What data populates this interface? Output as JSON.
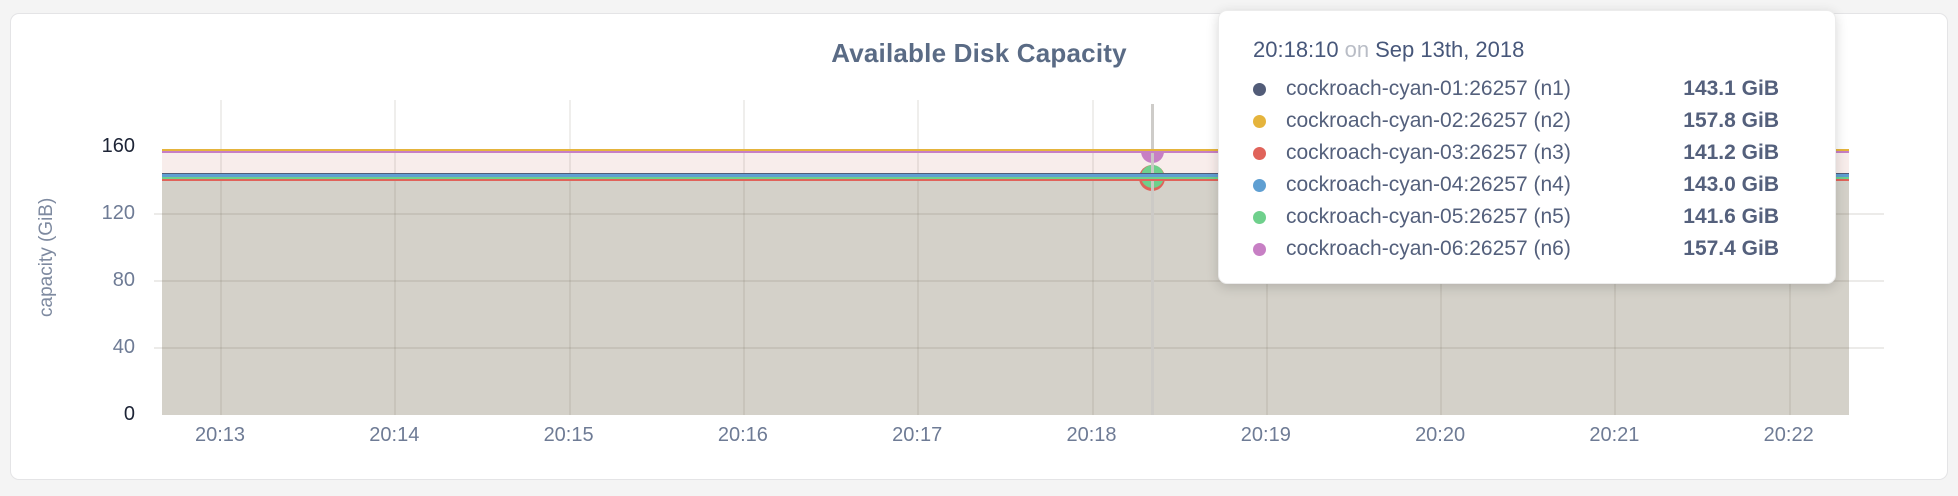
{
  "chart": {
    "title": "Available Disk Capacity",
    "ylabel": "capacity (GiB)"
  },
  "chart_data": {
    "type": "area",
    "title": "Available Disk Capacity",
    "xlabel": "",
    "ylabel": "capacity (GiB)",
    "ylim": [
      0,
      160
    ],
    "y_ticks": [
      0,
      40,
      80,
      120,
      160
    ],
    "x_ticks": [
      "20:13",
      "20:14",
      "20:15",
      "20:16",
      "20:17",
      "20:18",
      "20:19",
      "20:20",
      "20:21",
      "20:22"
    ],
    "grid": true,
    "legend_position": "tooltip",
    "hover_time": "20:18:10",
    "series": [
      {
        "name": "cockroach-cyan-01:26257 (n1)",
        "value_gib": 143.1,
        "color": "#525c78"
      },
      {
        "name": "cockroach-cyan-02:26257 (n2)",
        "value_gib": 157.8,
        "color": "#e5b43c"
      },
      {
        "name": "cockroach-cyan-03:26257 (n3)",
        "value_gib": 141.2,
        "color": "#e0635a"
      },
      {
        "name": "cockroach-cyan-04:26257 (n4)",
        "value_gib": 143.0,
        "color": "#5f9fd2"
      },
      {
        "name": "cockroach-cyan-05:26257 (n5)",
        "value_gib": 141.6,
        "color": "#6fd08c"
      },
      {
        "name": "cockroach-cyan-06:26257 (n6)",
        "value_gib": 157.4,
        "color": "#c77fc4"
      }
    ],
    "fill_colors": {
      "upper_band": "#f8edeb",
      "lower_area": "#d4d1c9"
    }
  },
  "tooltip": {
    "time": "20:18:10",
    "separator": "on",
    "date": "Sep 13th, 2018",
    "rows": [
      {
        "name": "cockroach-cyan-01:26257 (n1)",
        "value": "143.1 GiB"
      },
      {
        "name": "cockroach-cyan-02:26257 (n2)",
        "value": "157.8 GiB"
      },
      {
        "name": "cockroach-cyan-03:26257 (n3)",
        "value": "141.2 GiB"
      },
      {
        "name": "cockroach-cyan-04:26257 (n4)",
        "value": "143.0 GiB"
      },
      {
        "name": "cockroach-cyan-05:26257 (n5)",
        "value": "141.6 GiB"
      },
      {
        "name": "cockroach-cyan-06:26257 (n6)",
        "value": "157.4 GiB"
      }
    ]
  }
}
